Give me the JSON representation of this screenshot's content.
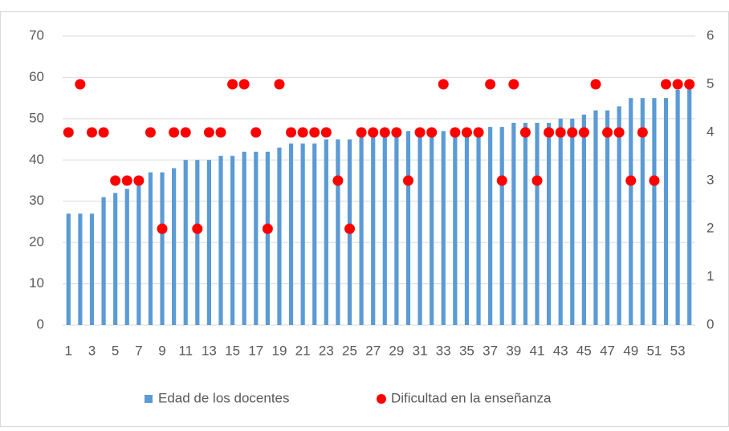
{
  "chart_data": {
    "type": "bar",
    "categories": [
      "1",
      null,
      "3",
      null,
      "5",
      null,
      "7",
      null,
      "9",
      null,
      "11",
      null,
      "13",
      null,
      "15",
      null,
      "17",
      null,
      "19",
      null,
      "21",
      null,
      "23",
      null,
      "25",
      null,
      "27",
      null,
      "29",
      null,
      "31",
      null,
      "33",
      null,
      "35",
      null,
      "37",
      null,
      "39",
      null,
      "41",
      null,
      "43",
      null,
      "45",
      null,
      "47",
      null,
      "49",
      null,
      "51",
      null,
      "53",
      null
    ],
    "series": [
      {
        "name": "Edad de los docentes",
        "type": "bar",
        "color": "#5b9bd5",
        "values": [
          27,
          27,
          27,
          31,
          32,
          33,
          35,
          37,
          37,
          38,
          40,
          40,
          40,
          41,
          41,
          42,
          42,
          42,
          43,
          44,
          44,
          44,
          45,
          45,
          45,
          46,
          46,
          46,
          46,
          47,
          47,
          47,
          47,
          47,
          47,
          47,
          48,
          48,
          49,
          49,
          49,
          49,
          50,
          50,
          51,
          52,
          52,
          53,
          55,
          55,
          55,
          55,
          57,
          58
        ]
      },
      {
        "name": "Dificultad en la enseñanza",
        "type": "scatter",
        "axis": "y2",
        "color": "#ff0000",
        "values": [
          4,
          5,
          4,
          4,
          3,
          3,
          3,
          4,
          2,
          4,
          4,
          2,
          4,
          4,
          5,
          5,
          4,
          2,
          5,
          4,
          4,
          4,
          4,
          3,
          2,
          4,
          4,
          4,
          4,
          3,
          4,
          4,
          5,
          4,
          4,
          4,
          5,
          3,
          5,
          4,
          3,
          4,
          4,
          4,
          4,
          5,
          4,
          4,
          3,
          4,
          3,
          5,
          5,
          5
        ]
      }
    ],
    "ylim": [
      0,
      70
    ],
    "yticks": [
      0,
      10,
      20,
      30,
      40,
      50,
      60,
      70
    ],
    "y2lim": [
      0,
      6
    ],
    "y2ticks": [
      0,
      1,
      2,
      3,
      4,
      5,
      6
    ],
    "grid": true,
    "legend": "bottom"
  }
}
